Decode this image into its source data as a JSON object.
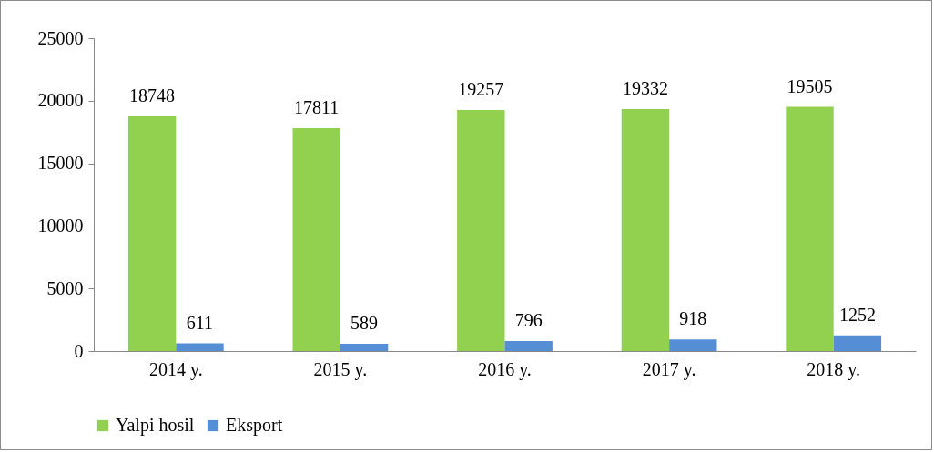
{
  "chart_data": {
    "type": "bar",
    "categories": [
      "2014 y.",
      "2015 y.",
      "2016 y.",
      "2017 y.",
      "2018 y."
    ],
    "series": [
      {
        "name": "Yalpi hosil",
        "color": "#92d050",
        "values": [
          18748,
          17811,
          19257,
          19332,
          19505
        ]
      },
      {
        "name": "Eksport",
        "color": "#558ed5",
        "values": [
          611,
          589,
          796,
          918,
          1252
        ]
      }
    ],
    "ylim": [
      0,
      25000
    ],
    "yticks": [
      0,
      5000,
      10000,
      15000,
      20000,
      25000
    ],
    "grid": false,
    "legend": "bottom",
    "data_labels": true
  }
}
